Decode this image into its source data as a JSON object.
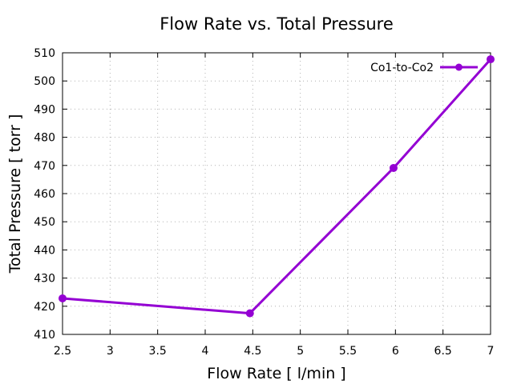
{
  "chart_data": {
    "type": "line",
    "title": "Flow Rate vs. Total Pressure",
    "xlabel": "Flow Rate [ l/min ]",
    "ylabel": "Total Pressure [ torr ]",
    "xlim": [
      2.5,
      7
    ],
    "ylim": [
      410,
      510
    ],
    "xticks": [
      2.5,
      3,
      3.5,
      4,
      4.5,
      5,
      5.5,
      6,
      6.5,
      7
    ],
    "xtick_labels": [
      "2.5",
      "3",
      "3.5",
      "4",
      "4.5",
      "5",
      "5.5",
      "6",
      "6.5",
      "7"
    ],
    "yticks": [
      410,
      420,
      430,
      440,
      450,
      460,
      470,
      480,
      490,
      500,
      510
    ],
    "ytick_labels": [
      "410",
      "420",
      "430",
      "440",
      "450",
      "460",
      "470",
      "480",
      "490",
      "500",
      "510"
    ],
    "grid": true,
    "legend_position": "top-right",
    "series": [
      {
        "name": "Co1-to-Co2",
        "color": "#9400d3",
        "x": [
          2.5,
          4.47,
          5.98,
          7.0
        ],
        "y": [
          422.8,
          417.5,
          469.1,
          507.7
        ]
      }
    ]
  }
}
